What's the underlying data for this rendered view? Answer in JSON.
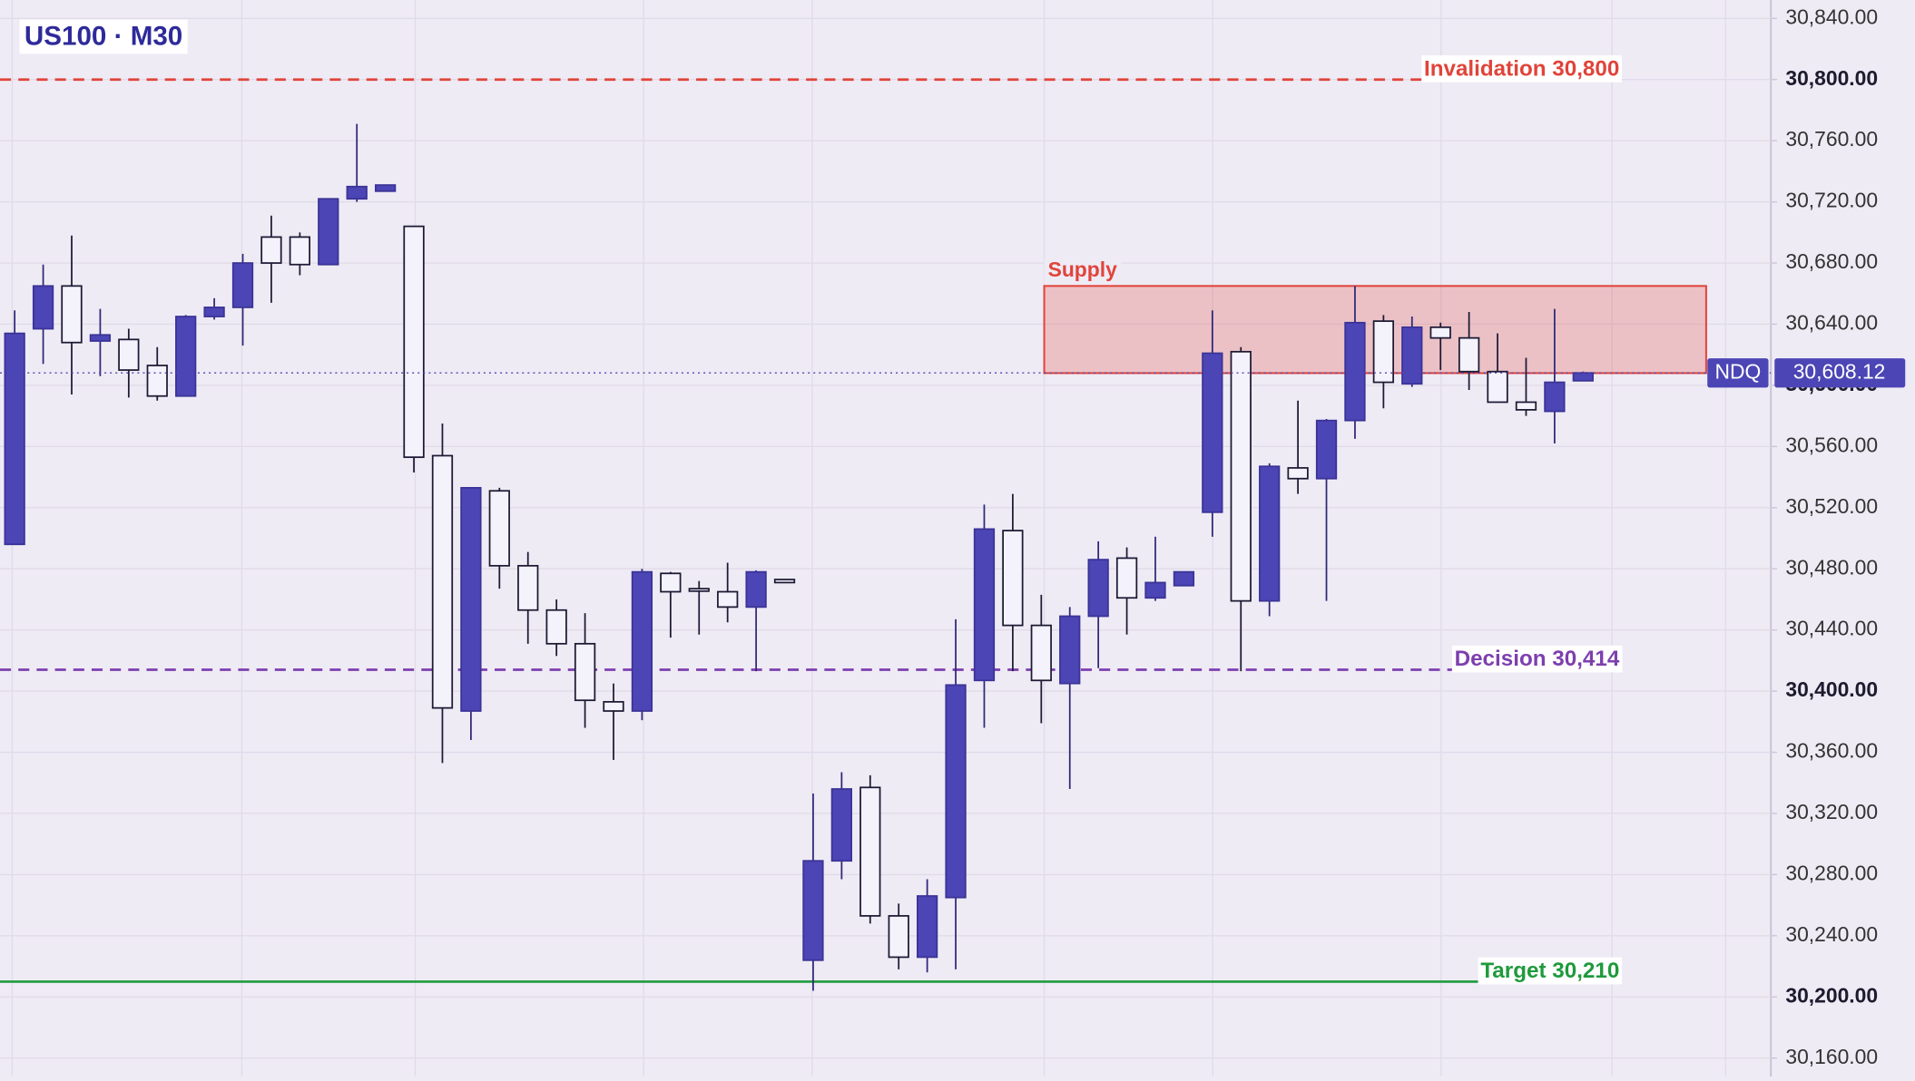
{
  "chart_data": {
    "type": "candlestick",
    "title": "US100 · M30",
    "open": [
      30496,
      30637,
      30665,
      30629,
      30630,
      30613,
      30593,
      30645,
      30651,
      30697,
      30697,
      30679,
      30722,
      30727,
      30704,
      30554,
      30387,
      30531,
      30482,
      30453,
      30431,
      30393,
      30387,
      30477,
      30467,
      30465,
      30455,
      30473,
      30224,
      30289,
      30337,
      30253,
      30226,
      30265,
      30407,
      30505,
      30443,
      30405,
      30449,
      30487,
      30461,
      30469,
      30517,
      30622,
      30459,
      30546,
      30539,
      30577,
      30642,
      30601,
      30638,
      30631,
      30609,
      30589,
      30583,
      30603
    ],
    "high": [
      30649,
      30679,
      30698,
      30650,
      30637,
      30625,
      30646,
      30657,
      30686,
      30711,
      30700,
      30722,
      30771,
      30731,
      30704,
      30575,
      30533,
      30533,
      30491,
      30460,
      30451,
      30405,
      30480,
      30478,
      30472,
      30484,
      30479,
      30473,
      30333,
      30347,
      30345,
      30261,
      30277,
      30447,
      30522,
      30529,
      30463,
      30455,
      30498,
      30494,
      30501,
      30478,
      30649,
      30625,
      30549,
      30590,
      30578,
      30665,
      30646,
      30645,
      30641,
      30648,
      30634,
      30618,
      30650,
      30609
    ],
    "low": [
      30496,
      30614,
      30594,
      30606,
      30592,
      30590,
      30593,
      30643,
      30626,
      30654,
      30672,
      30679,
      30720,
      30727,
      30543,
      30353,
      30368,
      30467,
      30431,
      30423,
      30376,
      30355,
      30381,
      30435,
      30437,
      30445,
      30413,
      30471,
      30204,
      30277,
      30248,
      30218,
      30216,
      30218,
      30376,
      30413,
      30379,
      30336,
      30415,
      30437,
      30459,
      30469,
      30501,
      30413,
      30449,
      30529,
      30459,
      30565,
      30585,
      30599,
      30610,
      30597,
      30589,
      30580,
      30562,
      30603
    ],
    "close": [
      30634,
      30665,
      30628,
      30633,
      30610,
      30593,
      30645,
      30651,
      30680,
      30680,
      30679,
      30722,
      30730,
      30731,
      30553,
      30389,
      30533,
      30482,
      30453,
      30431,
      30394,
      30387,
      30478,
      30465,
      30466,
      30455,
      30478,
      30471,
      30289,
      30336,
      30253,
      30226,
      30266,
      30404,
      30506,
      30443,
      30407,
      30449,
      30486,
      30461,
      30471,
      30478,
      30621,
      30459,
      30547,
      30539,
      30577,
      30641,
      30602,
      30638,
      30631,
      30609,
      30589,
      30584,
      30602,
      30608.12
    ],
    "up_color": "#4c45b5",
    "down_color": "#f4f2fb",
    "ylim": [
      30148,
      30852
    ],
    "yticks": [
      {
        "value": 30160,
        "label": "30,160.00"
      },
      {
        "value": 30200,
        "label": "30,200.00"
      },
      {
        "value": 30240,
        "label": "30,240.00"
      },
      {
        "value": 30280,
        "label": "30,280.00"
      },
      {
        "value": 30320,
        "label": "30,320.00"
      },
      {
        "value": 30360,
        "label": "30,360.00"
      },
      {
        "value": 30400,
        "label": "30,400.00"
      },
      {
        "value": 30440,
        "label": "30,440.00"
      },
      {
        "value": 30480,
        "label": "30,480.00"
      },
      {
        "value": 30520,
        "label": "30,520.00"
      },
      {
        "value": 30560,
        "label": "30,560.00"
      },
      {
        "value": 30600,
        "label": "30,600.00"
      },
      {
        "value": 30640,
        "label": "30,640.00"
      },
      {
        "value": 30680,
        "label": "30,680.00"
      },
      {
        "value": 30720,
        "label": "30,720.00"
      },
      {
        "value": 30760,
        "label": "30,760.00"
      },
      {
        "value": 30800,
        "label": "30,800.00"
      },
      {
        "value": 30840,
        "label": "30,840.00"
      }
    ],
    "grid": true,
    "levels": [
      {
        "label": "Invalidation 30,800",
        "value": 30800,
        "color": "#e0443a",
        "dashed": true
      },
      {
        "label": "Decision 30,414",
        "value": 30414,
        "color": "#7d3fae",
        "dashed": true
      },
      {
        "label": "Target 30,210",
        "value": 30210,
        "color": "#1f9a3c",
        "dashed": false
      }
    ],
    "zone": {
      "label": "Supply",
      "low": 30608,
      "high": 30665,
      "color": "#e0443a"
    },
    "last_price": {
      "symbol": "NDQ",
      "value": 30608.12,
      "label": "30,608.12",
      "color": "#4c45b5"
    }
  }
}
